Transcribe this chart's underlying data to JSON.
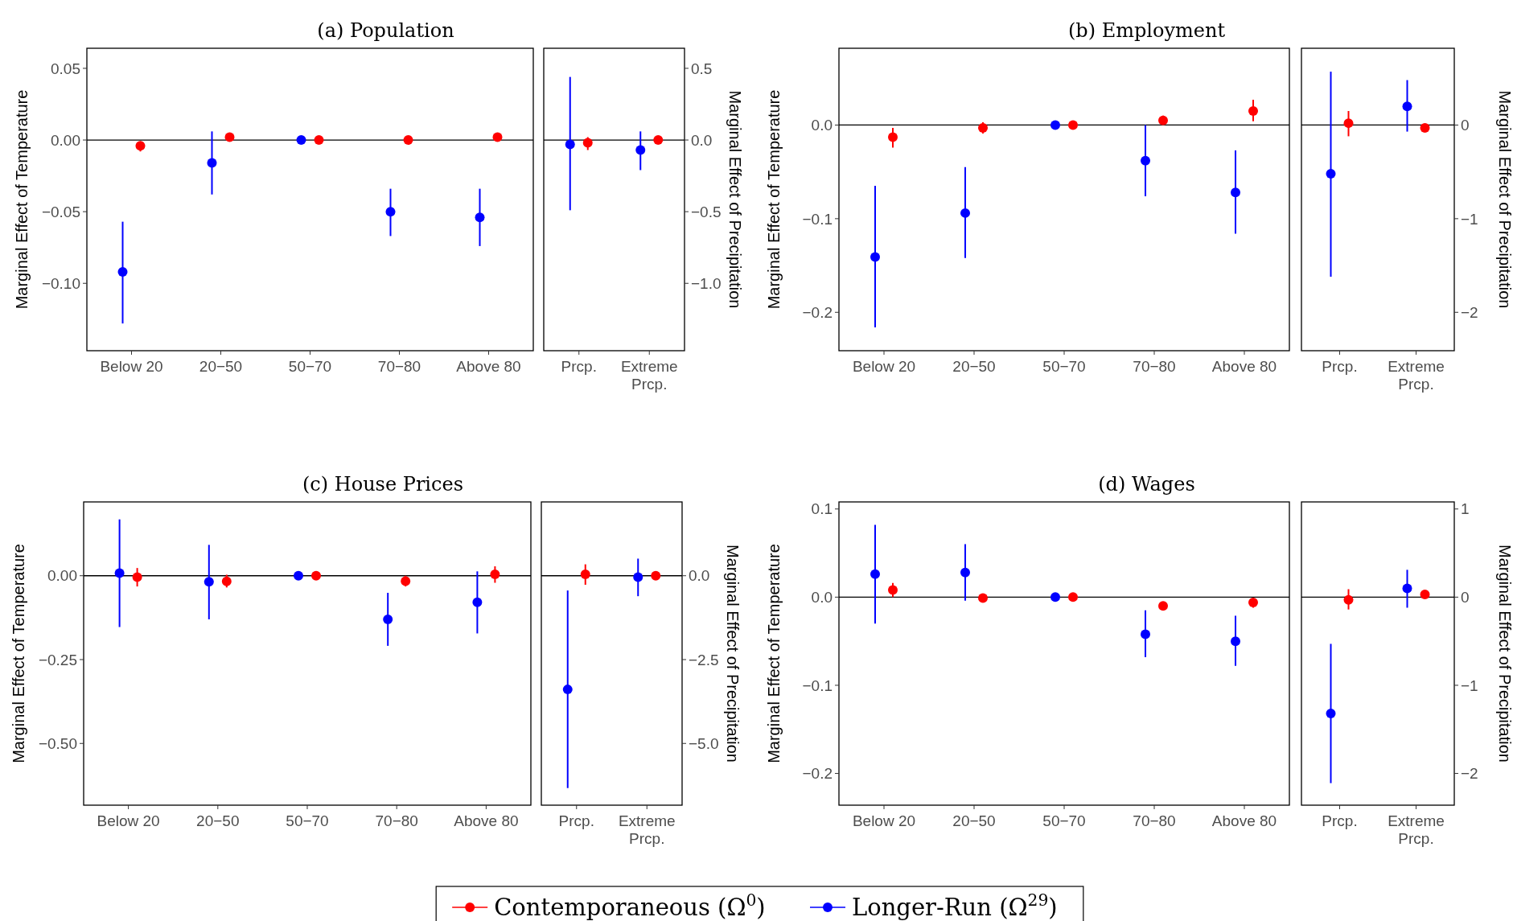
{
  "chart_data": [
    {
      "type": "scatter",
      "title": "(a) Population",
      "ylabel": "Marginal Effect of Temperature",
      "marker": "circle",
      "legend": "bottom",
      "categories": [
        "Below 20",
        "20−50",
        "50−70",
        "70−80",
        "Above 80"
      ],
      "ylim": [
        -0.147,
        0.064
      ],
      "yticks": [
        {
          "value": -0.1,
          "label": "−0.10"
        },
        {
          "value": -0.05,
          "label": "−0.05"
        },
        {
          "value": 0,
          "label": "0.00"
        },
        {
          "value": 0.05,
          "label": "0.05"
        }
      ],
      "ref_lines": [
        {
          "axis": "y",
          "value": 0,
          "color": "#000000"
        }
      ],
      "series": [
        {
          "name": "Longer-Run (Ω$^{29}$)",
          "color": "#0000ff",
          "values": [
            -0.092,
            -0.016,
            0,
            -0.05,
            -0.054
          ],
          "errors": [
            [
              -0.128,
              -0.057
            ],
            [
              -0.038,
              0.006
            ],
            null,
            [
              -0.067,
              -0.034
            ],
            [
              -0.074,
              -0.034
            ]
          ]
        },
        {
          "name": "Contemporaneous (Ω$^{0}$)",
          "color": "#ff0000",
          "values": [
            -0.004,
            0.002,
            0,
            0.0,
            0.002
          ],
          "errors": [
            [
              -0.008,
              -0.001
            ],
            [
              0.001,
              0.003
            ],
            null,
            null,
            [
              -0.001,
              0.005
            ]
          ]
        }
      ]
    },
    {
      "type": "scatter",
      "y2label": "Marginal Effect of Precipitation",
      "marker": "circle",
      "categories": [
        "Prcp.",
        "Extreme Prcp."
      ],
      "y2lim": [
        -1.47,
        0.64
      ],
      "y2ticks": [
        {
          "value": -1,
          "label": "−1.0"
        },
        {
          "value": -0.5,
          "label": "−0.5"
        },
        {
          "value": 0,
          "label": "0.0"
        },
        {
          "value": 0.5,
          "label": "0.5"
        }
      ],
      "ref_lines": [
        {
          "axis": "y2",
          "value": 0,
          "color": "#000000"
        }
      ],
      "series": [
        {
          "color": "#0000ff",
          "axis": "y2",
          "values": [
            -0.03,
            -0.07
          ],
          "errors": [
            [
              -0.49,
              0.44
            ],
            [
              -0.21,
              0.06
            ]
          ]
        },
        {
          "color": "#ff0000",
          "axis": "y2",
          "values": [
            -0.02,
            0.0
          ],
          "errors": [
            [
              -0.07,
              0.02
            ],
            null
          ]
        }
      ]
    },
    {
      "type": "scatter",
      "title": "(b) Employment",
      "ylabel": "Marginal Effect of Temperature",
      "marker": "circle",
      "categories": [
        "Below 20",
        "20−50",
        "50−70",
        "70−80",
        "Above 80"
      ],
      "ylim": [
        -0.241,
        0.082
      ],
      "yticks": [
        {
          "value": -0.2,
          "label": "−0.2"
        },
        {
          "value": -0.1,
          "label": "−0.1"
        },
        {
          "value": 0,
          "label": "0.0"
        }
      ],
      "ref_lines": [
        {
          "axis": "y",
          "value": 0,
          "color": "#000000"
        }
      ],
      "series": [
        {
          "color": "#0000ff",
          "values": [
            -0.141,
            -0.094,
            0,
            -0.038,
            -0.072
          ],
          "errors": [
            [
              -0.216,
              -0.065
            ],
            [
              -0.142,
              -0.045
            ],
            null,
            [
              -0.076,
              0.0
            ],
            [
              -0.116,
              -0.027
            ]
          ]
        },
        {
          "color": "#ff0000",
          "values": [
            -0.013,
            -0.003,
            0,
            0.005,
            0.015
          ],
          "errors": [
            [
              -0.024,
              -0.003
            ],
            [
              -0.009,
              0.003
            ],
            null,
            [
              0.001,
              0.01
            ],
            [
              0.004,
              0.027
            ]
          ]
        }
      ]
    },
    {
      "type": "scatter",
      "y2label": "Marginal Effect of Precipitation",
      "marker": "circle",
      "categories": [
        "Prcp.",
        "Extreme Prcp."
      ],
      "y2lim": [
        -2.41,
        0.82
      ],
      "y2ticks": [
        {
          "value": -2,
          "label": "−2"
        },
        {
          "value": -1,
          "label": "−1"
        },
        {
          "value": 0,
          "label": "0"
        }
      ],
      "ref_lines": [
        {
          "axis": "y2",
          "value": 0,
          "color": "#000000"
        }
      ],
      "series": [
        {
          "color": "#0000ff",
          "axis": "y2",
          "values": [
            -0.52,
            0.2
          ],
          "errors": [
            [
              -1.62,
              0.57
            ],
            [
              -0.07,
              0.48
            ]
          ]
        },
        {
          "color": "#ff0000",
          "axis": "y2",
          "values": [
            0.02,
            -0.03
          ],
          "errors": [
            [
              -0.12,
              0.15
            ],
            null
          ]
        }
      ]
    },
    {
      "type": "scatter",
      "title": "(c) House Prices",
      "ylabel": "Marginal Effect of Temperature",
      "marker": "circle",
      "categories": [
        "Below 20",
        "20−50",
        "50−70",
        "70−80",
        "Above 80"
      ],
      "ylim": [
        -0.684,
        0.22
      ],
      "yticks": [
        {
          "value": -0.5,
          "label": "−0.50"
        },
        {
          "value": -0.25,
          "label": "−0.25"
        },
        {
          "value": 0,
          "label": "0.00"
        }
      ],
      "ref_lines": [
        {
          "axis": "y",
          "value": 0,
          "color": "#000000"
        }
      ],
      "series": [
        {
          "color": "#0000ff",
          "values": [
            0.008,
            -0.018,
            0,
            -0.13,
            -0.079
          ],
          "errors": [
            [
              -0.153,
              0.168
            ],
            [
              -0.13,
              0.092
            ],
            null,
            [
              -0.209,
              -0.051
            ],
            [
              -0.172,
              0.013
            ]
          ]
        },
        {
          "color": "#ff0000",
          "values": [
            -0.004,
            -0.017,
            0,
            -0.016,
            0.004
          ],
          "errors": [
            [
              -0.032,
              0.023
            ],
            [
              -0.035,
              0.003
            ],
            null,
            [
              -0.032,
              0.0
            ],
            [
              -0.021,
              0.028
            ]
          ]
        }
      ]
    },
    {
      "type": "scatter",
      "y2label": "Marginal Effect of Precipitation",
      "marker": "circle",
      "categories": [
        "Prcp.",
        "Extreme Prcp."
      ],
      "y2lim": [
        -6.84,
        2.2
      ],
      "y2ticks": [
        {
          "value": -5,
          "label": "−5.0"
        },
        {
          "value": -2.5,
          "label": "−2.5"
        },
        {
          "value": 0,
          "label": "0.0"
        }
      ],
      "ref_lines": [
        {
          "axis": "y2",
          "value": 0,
          "color": "#000000"
        }
      ],
      "series": [
        {
          "color": "#0000ff",
          "axis": "y2",
          "values": [
            -3.39,
            -0.04
          ],
          "errors": [
            [
              -6.33,
              -0.44
            ],
            [
              -0.61,
              0.51
            ]
          ]
        },
        {
          "color": "#ff0000",
          "axis": "y2",
          "values": [
            0.04,
            0.0
          ],
          "errors": [
            [
              -0.27,
              0.34
            ],
            null
          ]
        }
      ]
    },
    {
      "type": "scatter",
      "title": "(d) Wages",
      "ylabel": "Marginal Effect of Temperature",
      "marker": "circle",
      "categories": [
        "Below 20",
        "20−50",
        "50−70",
        "70−80",
        "Above 80"
      ],
      "ylim": [
        -0.236,
        0.108
      ],
      "yticks": [
        {
          "value": -0.2,
          "label": "−0.2"
        },
        {
          "value": -0.1,
          "label": "−0.1"
        },
        {
          "value": 0,
          "label": "0.0"
        },
        {
          "value": 0.1,
          "label": "0.1"
        }
      ],
      "ref_lines": [
        {
          "axis": "y",
          "value": 0,
          "color": "#000000"
        }
      ],
      "series": [
        {
          "color": "#0000ff",
          "values": [
            0.026,
            0.028,
            0,
            -0.042,
            -0.05
          ],
          "errors": [
            [
              -0.03,
              0.082
            ],
            [
              -0.004,
              0.06
            ],
            null,
            [
              -0.068,
              -0.015
            ],
            [
              -0.078,
              -0.021
            ]
          ]
        },
        {
          "color": "#ff0000",
          "values": [
            0.008,
            -0.001,
            0,
            -0.01,
            -0.006
          ],
          "errors": [
            [
              0.0,
              0.016
            ],
            [
              -0.005,
              0.002
            ],
            null,
            [
              -0.014,
              -0.007
            ],
            [
              -0.012,
              -0.001
            ]
          ]
        }
      ]
    },
    {
      "type": "scatter",
      "y2label": "Marginal Effect of Precipitation",
      "marker": "circle",
      "categories": [
        "Prcp.",
        "Extreme Prcp."
      ],
      "y2lim": [
        -2.36,
        1.08
      ],
      "y2ticks": [
        {
          "value": -2,
          "label": "−2"
        },
        {
          "value": -1,
          "label": "−1"
        },
        {
          "value": 0,
          "label": "0"
        },
        {
          "value": 1,
          "label": "1"
        }
      ],
      "ref_lines": [
        {
          "axis": "y2",
          "value": 0,
          "color": "#000000"
        }
      ],
      "series": [
        {
          "color": "#0000ff",
          "axis": "y2",
          "values": [
            -1.32,
            0.1
          ],
          "errors": [
            [
              -2.11,
              -0.53
            ],
            [
              -0.12,
              0.31
            ]
          ]
        },
        {
          "color": "#ff0000",
          "axis": "y2",
          "values": [
            -0.03,
            0.03
          ],
          "errors": [
            [
              -0.14,
              0.09
            ],
            null
          ]
        }
      ]
    }
  ]
}
